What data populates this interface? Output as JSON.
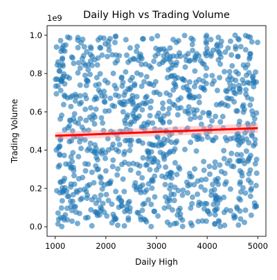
{
  "chart_data": {
    "type": "scatter",
    "title": "Daily High vs Trading Volume",
    "xlabel": "Daily High",
    "ylabel": "Trading Volume",
    "y_offset_label": "1e9",
    "xlim": [
      840,
      5160
    ],
    "ylim": [
      -0.05,
      1.05
    ],
    "y_scale_multiplier": 1000000000,
    "x_ticks": [
      1000,
      2000,
      3000,
      4000,
      5000
    ],
    "x_tick_labels": [
      "1000",
      "2000",
      "3000",
      "4000",
      "5000"
    ],
    "y_ticks": [
      0.0,
      0.2,
      0.4,
      0.6,
      0.8,
      1.0
    ],
    "y_tick_labels": [
      "0.0",
      "0.2",
      "0.4",
      "0.6",
      "0.8",
      "1.0"
    ],
    "grid": false,
    "legend": false,
    "colors": {
      "points": "#1f77b4",
      "regression_line": "#ff0000",
      "confidence_band": "#ff9999"
    },
    "point_opacity": 0.6,
    "point_count_approx": 1000,
    "x_range": [
      1000,
      5000
    ],
    "y_range": [
      0.0,
      1.0
    ],
    "regression": {
      "x": [
        1000,
        5000
      ],
      "y": [
        0.475,
        0.515
      ],
      "ci_low": [
        0.455,
        0.49
      ],
      "ci_high": [
        0.495,
        0.54
      ]
    }
  }
}
